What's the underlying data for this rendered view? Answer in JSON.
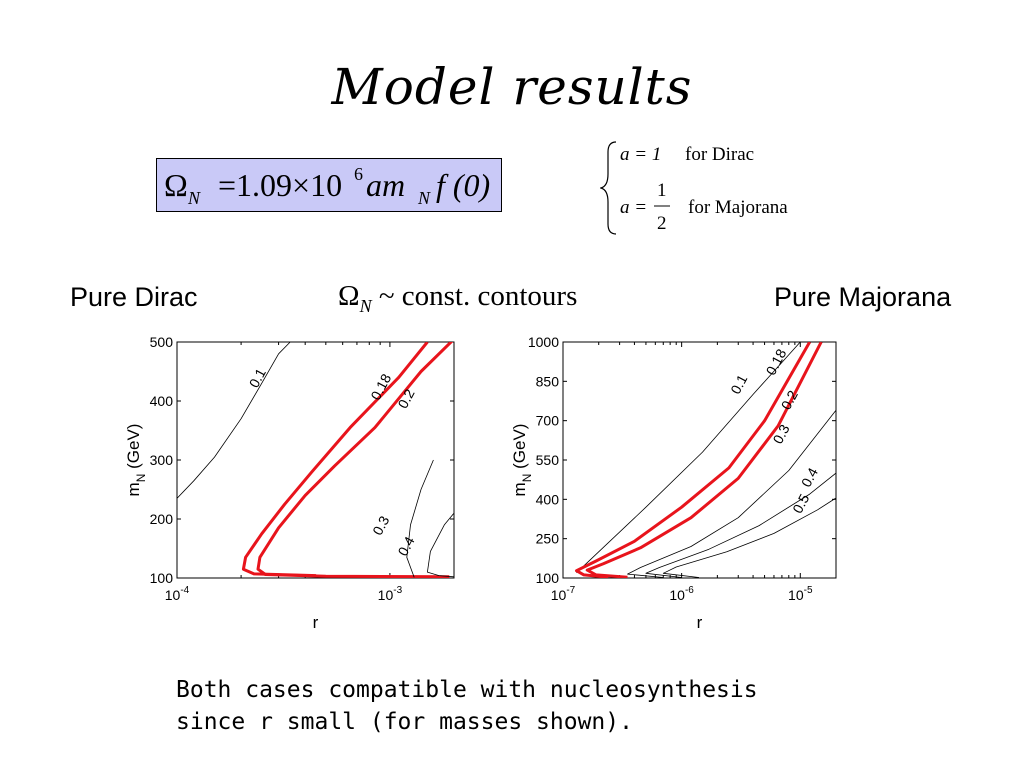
{
  "slide": {
    "title": "Model results",
    "formula": {
      "omega": "Ω",
      "omega_sub": "N",
      "equals_coef": "=1.09×10",
      "exponent": "6",
      "a_m": "am",
      "m_sub": "N",
      "f_part": "f (0)"
    },
    "cases": {
      "dirac_eq": "a = 1",
      "dirac_label": "for Dirac",
      "majorana_eq_lhs": "a =",
      "majorana_num": "1",
      "majorana_den": "2",
      "majorana_label": "for Majorana"
    },
    "label_left": "Pure Dirac",
    "label_right": "Pure Majorana",
    "contours_label": {
      "omega": "Ω",
      "sub": "N",
      "text": "~ const.  contours"
    },
    "note_line1": "Both cases compatible with nucleosynthesis",
    "note_line2": "since r small (for masses shown)."
  },
  "colors": {
    "formula_bg": "#c9c9f7",
    "highlight_contour": "#e8141c",
    "contour": "#000000"
  },
  "chart_data": [
    {
      "type": "line",
      "panel": "Pure Dirac",
      "xscale": "log",
      "xlabel": "r",
      "ylabel": "m_N (GeV)",
      "xlim": [
        0.0001,
        0.002
      ],
      "ylim": [
        100,
        500
      ],
      "xticks": [
        0.0001,
        0.001
      ],
      "xtick_labels": [
        {
          "base": "10",
          "exp": "-4"
        },
        {
          "base": "10",
          "exp": "-3"
        }
      ],
      "yticks": [
        100,
        200,
        300,
        400,
        500
      ],
      "ytick_labels": [
        "100",
        "200",
        "300",
        "400",
        "500"
      ],
      "series": [
        {
          "label": "0.1",
          "highlight": false,
          "points": [
            [
              0.0001,
              235
            ],
            [
              0.00012,
              265
            ],
            [
              0.00015,
              305
            ],
            [
              0.0002,
              370
            ],
            [
              0.00025,
              430
            ],
            [
              0.0003,
              480
            ],
            [
              0.00034,
              500
            ]
          ]
        },
        {
          "label": "0.18",
          "highlight": true,
          "points": [
            [
              0.00045,
              104
            ],
            [
              0.00023,
              107
            ],
            [
              0.000205,
              115
            ],
            [
              0.00021,
              135
            ],
            [
              0.00025,
              175
            ],
            [
              0.00032,
              225
            ],
            [
              0.00043,
              280
            ],
            [
              0.00065,
              355
            ],
            [
              0.0011,
              440
            ],
            [
              0.0015,
              500
            ]
          ]
        },
        {
          "label": "0.2",
          "highlight": true,
          "points": [
            [
              0.0019,
              102
            ],
            [
              0.0005,
              103
            ],
            [
              0.00026,
              106
            ],
            [
              0.00024,
              115
            ],
            [
              0.000245,
              135
            ],
            [
              0.0003,
              185
            ],
            [
              0.0004,
              240
            ],
            [
              0.00055,
              290
            ],
            [
              0.00085,
              355
            ],
            [
              0.0014,
              450
            ],
            [
              0.002,
              505
            ]
          ]
        },
        {
          "label": "0.3",
          "highlight": false,
          "points": [
            [
              0.0013,
              101
            ],
            [
              0.0012,
              135
            ],
            [
              0.00125,
              190
            ],
            [
              0.0014,
              250
            ],
            [
              0.0016,
              300
            ]
          ]
        },
        {
          "label": "0.4",
          "highlight": false,
          "points": [
            [
              0.002,
              102
            ],
            [
              0.0017,
              104
            ],
            [
              0.0015,
              110
            ],
            [
              0.00155,
              145
            ],
            [
              0.0018,
              190
            ],
            [
              0.002,
              210
            ]
          ]
        }
      ],
      "contour_labels": [
        {
          "text": "0.1",
          "x": 0.00025,
          "y": 435
        },
        {
          "text": "0.18",
          "x": 0.00095,
          "y": 420
        },
        {
          "text": "0.2",
          "x": 0.00125,
          "y": 400
        },
        {
          "text": "0.3",
          "x": 0.00095,
          "y": 185
        },
        {
          "text": "0.4",
          "x": 0.00125,
          "y": 150
        }
      ]
    },
    {
      "type": "line",
      "panel": "Pure Majorana",
      "xscale": "log",
      "xlabel": "r",
      "ylabel": "m_N (GeV)",
      "xlim": [
        1e-07,
        2e-05
      ],
      "ylim": [
        100,
        1000
      ],
      "xticks": [
        1e-07,
        1e-06,
        1e-05
      ],
      "xtick_labels": [
        {
          "base": "10",
          "exp": "-7"
        },
        {
          "base": "10",
          "exp": "-6"
        },
        {
          "base": "10",
          "exp": "-5"
        }
      ],
      "yticks": [
        100,
        250,
        400,
        550,
        700,
        850,
        1000
      ],
      "ytick_labels": [
        "100",
        "250",
        "400",
        "550",
        "700",
        "850",
        "1000"
      ],
      "series": [
        {
          "label": "0.1",
          "highlight": false,
          "points": [
            [
              1.3e-07,
              120
            ],
            [
              2e-07,
              200
            ],
            [
              5e-07,
              370
            ],
            [
              1.5e-06,
              580
            ],
            [
              4e-06,
              800
            ],
            [
              1e-05,
              1000
            ]
          ]
        },
        {
          "label": "0.18",
          "highlight": true,
          "points": [
            [
              2.4e-07,
              103
            ],
            [
              1.5e-07,
              112
            ],
            [
              1.3e-07,
              128
            ],
            [
              1.9e-07,
              165
            ],
            [
              4e-07,
              240
            ],
            [
              1e-06,
              370
            ],
            [
              2.5e-06,
              520
            ],
            [
              5e-06,
              700
            ],
            [
              1.2e-05,
              1000
            ]
          ]
        },
        {
          "label": "0.2",
          "highlight": true,
          "points": [
            [
              3.5e-07,
              103
            ],
            [
              1.9e-07,
              112
            ],
            [
              1.6e-07,
              130
            ],
            [
              2.2e-07,
              155
            ],
            [
              4.5e-07,
              215
            ],
            [
              1.2e-06,
              330
            ],
            [
              3e-06,
              480
            ],
            [
              6.5e-06,
              680
            ],
            [
              1.5e-05,
              1000
            ]
          ]
        },
        {
          "label": "0.3",
          "highlight": false,
          "points": [
            [
              7e-07,
              102
            ],
            [
              3.5e-07,
              115
            ],
            [
              4.5e-07,
              140
            ],
            [
              1.2e-06,
              220
            ],
            [
              3e-06,
              330
            ],
            [
              8e-06,
              510
            ],
            [
              2e-05,
              740
            ]
          ]
        },
        {
          "label": "0.4",
          "highlight": false,
          "points": [
            [
              1e-06,
              102
            ],
            [
              5e-07,
              118
            ],
            [
              6.5e-07,
              140
            ],
            [
              1.7e-06,
              210
            ],
            [
              4.5e-06,
              300
            ],
            [
              1.2e-05,
              420
            ],
            [
              2e-05,
              500
            ]
          ]
        },
        {
          "label": "0.5",
          "highlight": false,
          "points": [
            [
              1.4e-06,
              102
            ],
            [
              7e-07,
              118
            ],
            [
              9e-07,
              142
            ],
            [
              2.4e-06,
              200
            ],
            [
              6e-06,
              270
            ],
            [
              1.4e-05,
              360
            ],
            [
              2e-05,
              405
            ]
          ]
        }
      ],
      "contour_labels": [
        {
          "text": "0.1",
          "x": 3.3e-06,
          "y": 830
        },
        {
          "text": "0.18",
          "x": 6.8e-06,
          "y": 915
        },
        {
          "text": "0.2",
          "x": 8.8e-06,
          "y": 770
        },
        {
          "text": "0.3",
          "x": 7.5e-06,
          "y": 640
        },
        {
          "text": "0.4",
          "x": 1.3e-05,
          "y": 475
        },
        {
          "text": "0.5",
          "x": 1.1e-05,
          "y": 375
        }
      ]
    }
  ]
}
